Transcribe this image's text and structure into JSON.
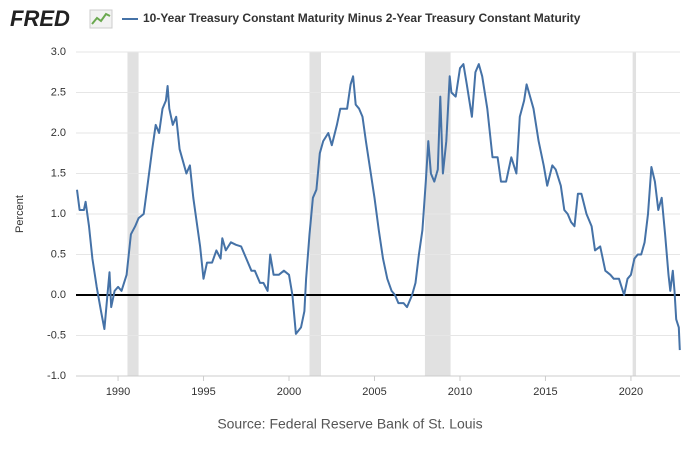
{
  "logo": "FRED",
  "chart_data": {
    "type": "line",
    "ylabel": "Percent",
    "source": "Source: Federal Reserve Bank of St. Louis",
    "xlim": [
      1987.54,
      2022.87
    ],
    "ylim": [
      -1,
      3
    ],
    "xticks": [
      1990,
      1995,
      2000,
      2005,
      2010,
      2015,
      2020
    ],
    "yticks": [
      {
        "value": -1,
        "label": "-1.0"
      },
      -0.5,
      {
        "value": 0,
        "label": "0.0"
      },
      0.5,
      {
        "value": 1,
        "label": "1.0"
      },
      1.5,
      {
        "value": 2,
        "label": "2.0"
      },
      2.5,
      {
        "value": 3,
        "label": "3.0"
      }
    ],
    "grid": true,
    "hline": 0,
    "recessions": [
      [
        1990.55,
        1991.2
      ],
      [
        2001.2,
        2001.87
      ],
      [
        2007.95,
        2009.45
      ],
      [
        2020.1,
        2020.3
      ]
    ],
    "recession_color": "#e1e1e1",
    "series": [
      {
        "name": "10-Year Treasury Constant Maturity Minus 2-Year Treasury Constant Maturity",
        "color": "#4572a7",
        "x": [
          1987.6,
          1987.75,
          1988.0,
          1988.1,
          1988.3,
          1988.5,
          1988.75,
          1989.0,
          1989.2,
          1989.4,
          1989.5,
          1989.6,
          1989.8,
          1990.0,
          1990.2,
          1990.5,
          1990.75,
          1991.0,
          1991.2,
          1991.5,
          1991.75,
          1992.0,
          1992.2,
          1992.4,
          1992.6,
          1992.8,
          1992.9,
          1993.0,
          1993.2,
          1993.4,
          1993.6,
          1993.8,
          1994.0,
          1994.2,
          1994.4,
          1994.6,
          1994.8,
          1995.0,
          1995.2,
          1995.5,
          1995.75,
          1996.0,
          1996.1,
          1996.3,
          1996.6,
          1996.9,
          1997.2,
          1997.5,
          1997.8,
          1998.0,
          1998.3,
          1998.5,
          1998.75,
          1998.9,
          1999.1,
          1999.4,
          1999.7,
          2000.0,
          2000.2,
          2000.4,
          2000.7,
          2000.9,
          2001.0,
          2001.2,
          2001.4,
          2001.6,
          2001.8,
          2002.0,
          2002.3,
          2002.5,
          2002.8,
          2003.0,
          2003.2,
          2003.4,
          2003.6,
          2003.75,
          2003.9,
          2004.1,
          2004.3,
          2004.5,
          2004.75,
          2005.0,
          2005.25,
          2005.5,
          2005.75,
          2006.0,
          2006.2,
          2006.4,
          2006.7,
          2006.9,
          2007.2,
          2007.4,
          2007.6,
          2007.8,
          2008.0,
          2008.15,
          2008.3,
          2008.5,
          2008.7,
          2008.85,
          2009.0,
          2009.2,
          2009.4,
          2009.5,
          2009.75,
          2010.0,
          2010.2,
          2010.4,
          2010.7,
          2010.9,
          2011.1,
          2011.3,
          2011.6,
          2011.9,
          2012.2,
          2012.4,
          2012.7,
          2013.0,
          2013.3,
          2013.5,
          2013.75,
          2013.9,
          2014.1,
          2014.3,
          2014.6,
          2014.9,
          2015.1,
          2015.4,
          2015.6,
          2015.9,
          2016.1,
          2016.3,
          2016.5,
          2016.7,
          2016.9,
          2017.1,
          2017.4,
          2017.7,
          2017.9,
          2018.2,
          2018.5,
          2018.8,
          2019.0,
          2019.3,
          2019.6,
          2019.8,
          2020.0,
          2020.2,
          2020.4,
          2020.6,
          2020.8,
          2021.0,
          2021.2,
          2021.4,
          2021.6,
          2021.8,
          2022.0,
          2022.2,
          2022.3,
          2022.45,
          2022.55,
          2022.65,
          2022.8,
          2022.86
        ],
        "values": [
          1.3,
          1.05,
          1.05,
          1.15,
          0.85,
          0.45,
          0.1,
          -0.2,
          -0.42,
          0.05,
          0.28,
          -0.15,
          0.05,
          0.1,
          0.05,
          0.25,
          0.75,
          0.85,
          0.95,
          1.0,
          1.4,
          1.8,
          2.1,
          2.0,
          2.3,
          2.4,
          2.58,
          2.3,
          2.1,
          2.2,
          1.8,
          1.65,
          1.5,
          1.6,
          1.2,
          0.9,
          0.6,
          0.2,
          0.4,
          0.4,
          0.55,
          0.45,
          0.7,
          0.55,
          0.65,
          0.62,
          0.6,
          0.45,
          0.3,
          0.3,
          0.15,
          0.15,
          0.05,
          0.5,
          0.25,
          0.25,
          0.3,
          0.25,
          0.0,
          -0.48,
          -0.4,
          -0.2,
          0.2,
          0.75,
          1.2,
          1.3,
          1.75,
          1.9,
          2.0,
          1.85,
          2.1,
          2.3,
          2.3,
          2.3,
          2.6,
          2.7,
          2.35,
          2.3,
          2.2,
          1.9,
          1.55,
          1.2,
          0.8,
          0.45,
          0.2,
          0.05,
          0.0,
          -0.1,
          -0.1,
          -0.15,
          0.0,
          0.15,
          0.5,
          0.8,
          1.4,
          1.9,
          1.5,
          1.4,
          1.55,
          2.45,
          1.5,
          1.9,
          2.7,
          2.5,
          2.45,
          2.8,
          2.85,
          2.6,
          2.2,
          2.75,
          2.85,
          2.7,
          2.3,
          1.7,
          1.7,
          1.4,
          1.4,
          1.7,
          1.5,
          2.2,
          2.4,
          2.6,
          2.45,
          2.3,
          1.9,
          1.6,
          1.35,
          1.6,
          1.55,
          1.35,
          1.05,
          1.0,
          0.9,
          0.85,
          1.25,
          1.25,
          1.0,
          0.85,
          0.55,
          0.6,
          0.3,
          0.25,
          0.2,
          0.2,
          0.0,
          0.2,
          0.25,
          0.45,
          0.5,
          0.5,
          0.65,
          1.0,
          1.58,
          1.4,
          1.05,
          1.2,
          0.75,
          0.25,
          0.05,
          0.3,
          0.05,
          -0.3,
          -0.4,
          -0.68
        ]
      }
    ]
  }
}
